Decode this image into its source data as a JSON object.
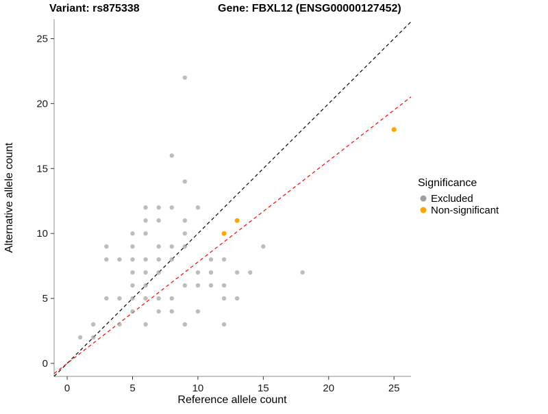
{
  "header": {
    "title_left": "Variant: rs875338",
    "title_right": "Gene: FBXL12 (ENSG00000127452)"
  },
  "chart_data": {
    "type": "scatter",
    "title": "Variant: rs875338   Gene: FBXL12 (ENSG00000127452)",
    "xlabel": "Reference allele count",
    "ylabel": "Alternative allele count",
    "xlim": [
      -1,
      26.3
    ],
    "ylim": [
      -1,
      26.5
    ],
    "x_ticks": [
      0,
      5,
      10,
      15,
      20,
      25
    ],
    "y_ticks": [
      0,
      5,
      10,
      15,
      20,
      25
    ],
    "grid": false,
    "legend": {
      "title": "Significance",
      "position": "right",
      "items": [
        {
          "label": "Excluded",
          "color": "#a0a0a0"
        },
        {
          "label": "Non-significant",
          "color": "#FFA500"
        }
      ]
    },
    "series": [
      {
        "name": "Excluded",
        "color": "#999999",
        "opacity": 0.65,
        "radius": 3.2,
        "points": [
          [
            1,
            2
          ],
          [
            2,
            2
          ],
          [
            2,
            3
          ],
          [
            3,
            5
          ],
          [
            3,
            8
          ],
          [
            3,
            9
          ],
          [
            4,
            3
          ],
          [
            4,
            5
          ],
          [
            4,
            8
          ],
          [
            5,
            4
          ],
          [
            5,
            5
          ],
          [
            5,
            6
          ],
          [
            5,
            7
          ],
          [
            5,
            8
          ],
          [
            5,
            9
          ],
          [
            5,
            10
          ],
          [
            6,
            3
          ],
          [
            6,
            5
          ],
          [
            6,
            6
          ],
          [
            6,
            7
          ],
          [
            6,
            8
          ],
          [
            6,
            10
          ],
          [
            6,
            11
          ],
          [
            6,
            12
          ],
          [
            7,
            4
          ],
          [
            7,
            5
          ],
          [
            7,
            7
          ],
          [
            7,
            8
          ],
          [
            7,
            9
          ],
          [
            7,
            11
          ],
          [
            7,
            12
          ],
          [
            8,
            4
          ],
          [
            8,
            5
          ],
          [
            8,
            8
          ],
          [
            8,
            9
          ],
          [
            8,
            12
          ],
          [
            8,
            16
          ],
          [
            9,
            3
          ],
          [
            9,
            6
          ],
          [
            9,
            9
          ],
          [
            9,
            10
          ],
          [
            9,
            11
          ],
          [
            9,
            14
          ],
          [
            9,
            22
          ],
          [
            10,
            4
          ],
          [
            10,
            6
          ],
          [
            10,
            7
          ],
          [
            10,
            12
          ],
          [
            11,
            6
          ],
          [
            11,
            7
          ],
          [
            11,
            8
          ],
          [
            12,
            3
          ],
          [
            12,
            5
          ],
          [
            12,
            6
          ],
          [
            12,
            8
          ],
          [
            13,
            5
          ],
          [
            13,
            7
          ],
          [
            14,
            7
          ],
          [
            15,
            9
          ],
          [
            18,
            7
          ]
        ]
      },
      {
        "name": "Non-significant",
        "color": "#FFA500",
        "opacity": 1,
        "radius": 3.5,
        "points": [
          [
            12,
            10
          ],
          [
            13,
            11
          ],
          [
            25,
            18
          ]
        ]
      }
    ],
    "lines": [
      {
        "name": "identity-line",
        "slope": 1,
        "intercept": 0,
        "color": "#000000",
        "dash": "5,4"
      },
      {
        "name": "fit-line",
        "slope": 0.78,
        "intercept": 0,
        "color": "#FF0000",
        "dash": "5,4"
      }
    ]
  }
}
